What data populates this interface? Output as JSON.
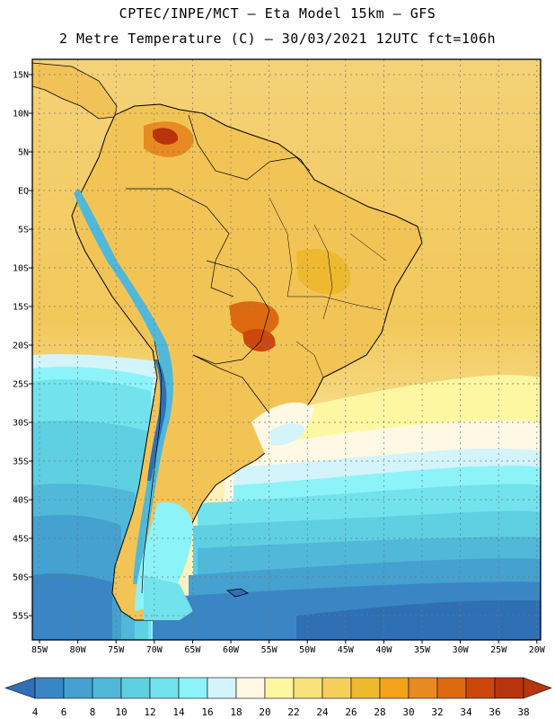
{
  "header": {
    "line1": "CPTEC/INPE/MCT –  Eta Model 15km – GFS",
    "line2": "2 Metre Temperature (C) – 30/03/2021 12UTC fct=106h"
  },
  "map": {
    "region": "South America",
    "lat_labels": [
      "15N",
      "10N",
      "5N",
      "EQ",
      "5S",
      "10S",
      "15S",
      "20S",
      "25S",
      "30S",
      "35S",
      "40S",
      "45S",
      "50S",
      "55S"
    ],
    "lon_labels": [
      "85W",
      "80W",
      "75W",
      "70W",
      "65W",
      "60W",
      "55W",
      "50W",
      "45W",
      "40W",
      "35W",
      "30W",
      "25W",
      "20W"
    ]
  },
  "colorbar": {
    "labels": [
      "4",
      "6",
      "8",
      "10",
      "12",
      "14",
      "16",
      "18",
      "20",
      "22",
      "24",
      "26",
      "28",
      "30",
      "32",
      "34",
      "36",
      "38"
    ],
    "under_color": "#2f6fb4",
    "over_color": "#b8340e",
    "colors": [
      "#2f6fb4",
      "#3a86c4",
      "#45a1d0",
      "#51b8d9",
      "#5fcfe2",
      "#72e2ec",
      "#8cf3f8",
      "#d2f4fa",
      "#fff8e4",
      "#fdf7a2",
      "#f8e27a",
      "#f4cf5c",
      "#eeb92f",
      "#f3a21a",
      "#e98a20",
      "#de6a10",
      "#cb470c",
      "#b8340e"
    ]
  }
}
